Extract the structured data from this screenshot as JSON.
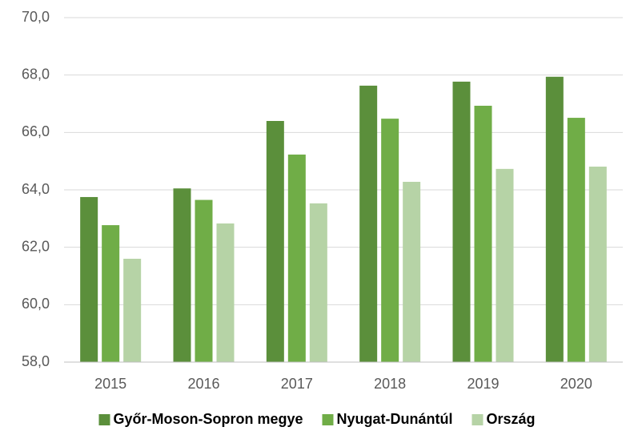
{
  "chart_data": {
    "type": "bar",
    "categories": [
      "2015",
      "2016",
      "2017",
      "2018",
      "2019",
      "2020"
    ],
    "series": [
      {
        "name": "Győr-Moson-Sopron megye",
        "color": "#5b8f3b",
        "values": [
          63.75,
          64.05,
          66.4,
          67.63,
          67.77,
          67.94
        ]
      },
      {
        "name": "Nyugat-Dunántúl",
        "color": "#70ad47",
        "values": [
          62.77,
          63.65,
          65.23,
          66.48,
          66.93,
          66.51
        ]
      },
      {
        "name": "Ország",
        "color": "#b6d3a6",
        "values": [
          61.6,
          62.83,
          63.53,
          64.28,
          64.73,
          64.81
        ]
      }
    ],
    "ylim": [
      58,
      70
    ],
    "yticks": [
      {
        "value": 58,
        "label": "58,0"
      },
      {
        "value": 60,
        "label": "60,0"
      },
      {
        "value": 62,
        "label": "62,0"
      },
      {
        "value": 64,
        "label": "64,0"
      },
      {
        "value": 66,
        "label": "66,0"
      },
      {
        "value": 68,
        "label": "68,0"
      },
      {
        "value": 70,
        "label": "70,0"
      }
    ],
    "grid": true,
    "legend": "bottom"
  }
}
